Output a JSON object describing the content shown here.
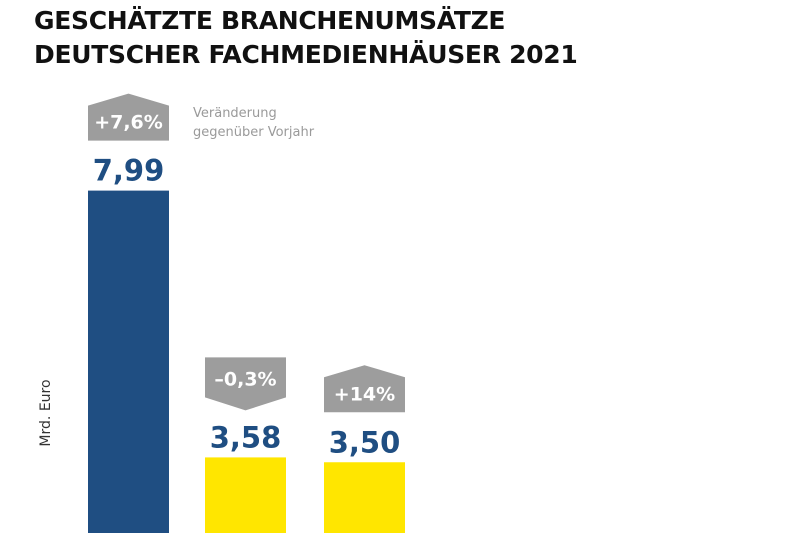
{
  "title_lines": [
    "GESCHÄTZTE BRANCHENUMSÄTZE",
    "DEUTSCHER FACHMEDIENHÄUSER 2021"
  ],
  "chart_data": {
    "type": "bar",
    "title": "GESCHÄTZTE BRANCHENUMSÄTZE DEUTSCHER FACHMEDIENHÄUSER 2021",
    "ylabel": "Mrd. Euro",
    "xlabel": "",
    "values": [
      7.99,
      3.58,
      3.5
    ],
    "value_labels": [
      "7,99",
      "3,58",
      "3,50"
    ],
    "changes": [
      "+7,6%",
      "–0,3%",
      "+14%"
    ],
    "change_direction": [
      "up",
      "down",
      "up"
    ],
    "change_note": [
      "Veränderung",
      "gegenüber Vorjahr"
    ],
    "colors": [
      "#1f4e82",
      "#ffe600",
      "#ffe600"
    ],
    "badge_color": "#9d9d9d",
    "label_color": "#1f4e82"
  }
}
